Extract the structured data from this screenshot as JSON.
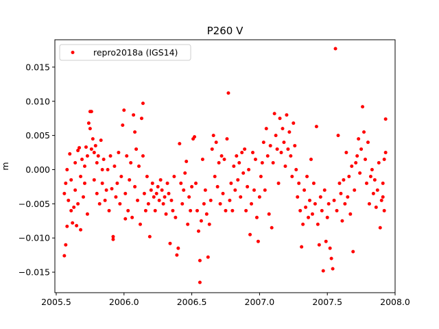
{
  "chart_data": {
    "type": "scatter",
    "title": "P260 V",
    "xlabel": "",
    "ylabel": "m",
    "xlim": [
      2005.49,
      2008.0
    ],
    "ylim": [
      -0.018,
      0.019
    ],
    "x_ticks": [
      {
        "value": 2005.5,
        "label": "2005.5"
      },
      {
        "value": 2006.0,
        "label": "2006.0"
      },
      {
        "value": 2006.5,
        "label": "2006.5"
      },
      {
        "value": 2007.0,
        "label": "2007.0"
      },
      {
        "value": 2007.5,
        "label": "2007.5"
      },
      {
        "value": 2008.0,
        "label": "2008.0"
      }
    ],
    "y_ticks": [
      {
        "value": 0.015,
        "label": "0.015"
      },
      {
        "value": 0.01,
        "label": "0.010"
      },
      {
        "value": 0.005,
        "label": "0.005"
      },
      {
        "value": 0.0,
        "label": "0.000"
      },
      {
        "value": -0.005,
        "label": "−0.005"
      },
      {
        "value": -0.01,
        "label": "−0.010"
      },
      {
        "value": -0.015,
        "label": "−0.015"
      }
    ],
    "grid": false,
    "legend": {
      "placement": "top-left"
    },
    "series": [
      {
        "name": "repro2018a (IGS14)",
        "color": "#ff0000",
        "points": [
          [
            2005.56,
            -0.0126
          ],
          [
            2005.57,
            -0.011
          ],
          [
            2005.58,
            -0.0083
          ],
          [
            2005.56,
            -0.0035
          ],
          [
            2005.57,
            -0.002
          ],
          [
            2005.58,
            0.0
          ],
          [
            2005.59,
            -0.0045
          ],
          [
            2005.6,
            0.0023
          ],
          [
            2005.61,
            -0.0015
          ],
          [
            2005.61,
            -0.006
          ],
          [
            2005.62,
            -0.0078
          ],
          [
            2005.63,
            -0.0055
          ],
          [
            2005.64,
            -0.003
          ],
          [
            2005.64,
            0.001
          ],
          [
            2005.65,
            -0.0082
          ],
          [
            2005.66,
            0.0028
          ],
          [
            2005.66,
            -0.005
          ],
          [
            2005.67,
            0.0032
          ],
          [
            2005.68,
            -0.0088
          ],
          [
            2005.68,
            -0.001
          ],
          [
            2005.69,
            0.0015
          ],
          [
            2005.7,
            -0.004
          ],
          [
            2005.71,
            -0.002
          ],
          [
            2005.71,
            0.0005
          ],
          [
            2005.72,
            0.0033
          ],
          [
            2005.73,
            -0.0065
          ],
          [
            2005.73,
            0.002
          ],
          [
            2005.74,
            0.0068
          ],
          [
            2005.75,
            0.0085
          ],
          [
            2005.75,
            0.006
          ],
          [
            2005.76,
            0.0085
          ],
          [
            2005.76,
            0.003
          ],
          [
            2005.77,
            0.0045
          ],
          [
            2005.78,
            0.0025
          ],
          [
            2005.78,
            -0.0015
          ],
          [
            2005.79,
            0.0035
          ],
          [
            2005.8,
            0.001
          ],
          [
            2005.8,
            -0.0035
          ],
          [
            2005.81,
            0.002
          ],
          [
            2005.82,
            -0.005
          ],
          [
            2005.83,
            0.0043
          ],
          [
            2005.84,
            0.0
          ],
          [
            2005.84,
            -0.002
          ],
          [
            2005.85,
            0.0015
          ],
          [
            2005.86,
            -0.0045
          ],
          [
            2005.87,
            -0.003
          ],
          [
            2005.88,
            0.0
          ],
          [
            2005.89,
            -0.006
          ],
          [
            2005.9,
            0.002
          ],
          [
            2005.91,
            -0.0028
          ],
          [
            2005.92,
            -0.0102
          ],
          [
            2005.92,
            -0.0098
          ],
          [
            2005.93,
            0.0005
          ],
          [
            2005.94,
            -0.004
          ],
          [
            2005.95,
            -0.002
          ],
          [
            2005.96,
            0.0025
          ],
          [
            2005.97,
            -0.005
          ],
          [
            2005.98,
            -0.001
          ],
          [
            2005.99,
            0.0065
          ],
          [
            2006.0,
            0.0087
          ],
          [
            2006.01,
            -0.0035
          ],
          [
            2006.01,
            -0.0072
          ],
          [
            2006.02,
            0.002
          ],
          [
            2006.03,
            -0.006
          ],
          [
            2006.04,
            -0.0015
          ],
          [
            2006.05,
            0.001
          ],
          [
            2006.06,
            -0.007
          ],
          [
            2006.07,
            0.008
          ],
          [
            2006.08,
            0.0055
          ],
          [
            2006.08,
            -0.0025
          ],
          [
            2006.09,
            0.003
          ],
          [
            2006.1,
            -0.0045
          ],
          [
            2006.11,
            0.0005
          ],
          [
            2006.12,
            -0.008
          ],
          [
            2006.13,
            0.0075
          ],
          [
            2006.14,
            0.0097
          ],
          [
            2006.14,
            0.002
          ],
          [
            2006.15,
            -0.0035
          ],
          [
            2006.16,
            -0.006
          ],
          [
            2006.17,
            -0.001
          ],
          [
            2006.18,
            -0.005
          ],
          [
            2006.19,
            -0.0098
          ],
          [
            2006.2,
            -0.003
          ],
          [
            2006.21,
            -0.002
          ],
          [
            2006.22,
            -0.004
          ],
          [
            2006.23,
            -0.006
          ],
          [
            2006.24,
            -0.0035
          ],
          [
            2006.25,
            -0.0025
          ],
          [
            2006.26,
            -0.0045
          ],
          [
            2006.27,
            -0.0015
          ],
          [
            2006.28,
            -0.003
          ],
          [
            2006.29,
            -0.005
          ],
          [
            2006.3,
            -0.004
          ],
          [
            2006.31,
            -0.0065
          ],
          [
            2006.32,
            -0.002
          ],
          [
            2006.33,
            -0.0035
          ],
          [
            2006.34,
            -0.0108
          ],
          [
            2006.35,
            -0.0045
          ],
          [
            2006.36,
            -0.006
          ],
          [
            2006.37,
            -0.001
          ],
          [
            2006.38,
            -0.007
          ],
          [
            2006.39,
            -0.0125
          ],
          [
            2006.4,
            -0.0115
          ],
          [
            2006.41,
            0.0038
          ],
          [
            2006.42,
            -0.002
          ],
          [
            2006.43,
            -0.005
          ],
          [
            2006.44,
            -0.003
          ],
          [
            2006.45,
            -0.0005
          ],
          [
            2006.46,
            0.0012
          ],
          [
            2006.47,
            -0.008
          ],
          [
            2006.48,
            -0.004
          ],
          [
            2006.49,
            -0.006
          ],
          [
            2006.5,
            -0.0025
          ],
          [
            2006.51,
            0.0045
          ],
          [
            2006.52,
            0.0048
          ],
          [
            2006.53,
            -0.002
          ],
          [
            2006.54,
            -0.006
          ],
          [
            2006.55,
            -0.009
          ],
          [
            2006.56,
            -0.0165
          ],
          [
            2006.56,
            -0.0133
          ],
          [
            2006.57,
            -0.0075
          ],
          [
            2006.58,
            0.0015
          ],
          [
            2006.59,
            -0.005
          ],
          [
            2006.6,
            -0.003
          ],
          [
            2006.61,
            -0.0065
          ],
          [
            2006.62,
            -0.0128
          ],
          [
            2006.63,
            -0.008
          ],
          [
            2006.64,
            -0.0045
          ],
          [
            2006.65,
            0.003
          ],
          [
            2006.66,
            0.005
          ],
          [
            2006.67,
            -0.001
          ],
          [
            2006.68,
            0.004
          ],
          [
            2006.69,
            -0.0025
          ],
          [
            2006.7,
            0.001
          ],
          [
            2006.71,
            -0.005
          ],
          [
            2006.72,
            0.002
          ],
          [
            2006.73,
            -0.0035
          ],
          [
            2006.74,
            0.0015
          ],
          [
            2006.75,
            -0.006
          ],
          [
            2006.76,
            0.0045
          ],
          [
            2006.77,
            0.0112
          ],
          [
            2006.78,
            -0.0045
          ],
          [
            2006.79,
            -0.002
          ],
          [
            2006.8,
            -0.006
          ],
          [
            2006.81,
            0.0005
          ],
          [
            2006.82,
            -0.003
          ],
          [
            2006.83,
            0.002
          ],
          [
            2006.84,
            -0.0015
          ],
          [
            2006.85,
            0.001
          ],
          [
            2006.86,
            -0.004
          ],
          [
            2006.87,
            0.0025
          ],
          [
            2006.88,
            -0.0005
          ],
          [
            2006.89,
            0.003
          ],
          [
            2006.9,
            -0.006
          ],
          [
            2006.91,
            -0.0025
          ],
          [
            2006.92,
            0.0
          ],
          [
            2006.93,
            -0.0095
          ],
          [
            2006.94,
            -0.005
          ],
          [
            2006.95,
            0.0025
          ],
          [
            2006.96,
            -0.003
          ],
          [
            2006.97,
            0.0015
          ],
          [
            2006.98,
            -0.007
          ],
          [
            2006.99,
            -0.0105
          ],
          [
            2007.0,
            -0.004
          ],
          [
            2007.01,
            -0.001
          ],
          [
            2007.02,
            0.001
          ],
          [
            2007.03,
            0.004
          ],
          [
            2007.04,
            -0.003
          ],
          [
            2007.05,
            0.006
          ],
          [
            2007.06,
            0.002
          ],
          [
            2007.07,
            -0.0065
          ],
          [
            2007.08,
            0.0035
          ],
          [
            2007.09,
            -0.0085
          ],
          [
            2007.1,
            0.001
          ],
          [
            2007.11,
            0.0082
          ],
          [
            2007.12,
            0.005
          ],
          [
            2007.13,
            0.003
          ],
          [
            2007.14,
            -0.002
          ],
          [
            2007.15,
            0.0075
          ],
          [
            2007.16,
            0.0025
          ],
          [
            2007.17,
            0.006
          ],
          [
            2007.18,
            0.004
          ],
          [
            2007.19,
            0.0005
          ],
          [
            2007.2,
            0.008
          ],
          [
            2007.21,
            0.003
          ],
          [
            2007.22,
            0.0055
          ],
          [
            2007.23,
            0.002
          ],
          [
            2007.24,
            -0.001
          ],
          [
            2007.25,
            0.0068
          ],
          [
            2007.26,
            0.0035
          ],
          [
            2007.27,
            0.0
          ],
          [
            2007.28,
            -0.004
          ],
          [
            2007.29,
            -0.002
          ],
          [
            2007.3,
            -0.006
          ],
          [
            2007.31,
            -0.0113
          ],
          [
            2007.32,
            -0.008
          ],
          [
            2007.33,
            -0.003
          ],
          [
            2007.34,
            -0.0055
          ],
          [
            2007.35,
            -0.001
          ],
          [
            2007.36,
            -0.007
          ],
          [
            2007.37,
            -0.0045
          ],
          [
            2007.38,
            0.0015
          ],
          [
            2007.39,
            -0.0065
          ],
          [
            2007.4,
            -0.002
          ],
          [
            2007.41,
            -0.005
          ],
          [
            2007.42,
            0.0063
          ],
          [
            2007.43,
            -0.008
          ],
          [
            2007.44,
            -0.011
          ],
          [
            2007.45,
            -0.004
          ],
          [
            2007.46,
            -0.006
          ],
          [
            2007.47,
            -0.0148
          ],
          [
            2007.48,
            -0.003
          ],
          [
            2007.49,
            -0.0105
          ],
          [
            2007.5,
            -0.007
          ],
          [
            2007.51,
            -0.005
          ],
          [
            2007.52,
            -0.0115
          ],
          [
            2007.53,
            -0.013
          ],
          [
            2007.54,
            -0.0145
          ],
          [
            2007.55,
            -0.0045
          ],
          [
            2007.56,
            0.0177
          ],
          [
            2007.57,
            -0.006
          ],
          [
            2007.58,
            0.005
          ],
          [
            2007.59,
            -0.002
          ],
          [
            2007.6,
            -0.0035
          ],
          [
            2007.61,
            -0.0075
          ],
          [
            2007.62,
            -0.0015
          ],
          [
            2007.63,
            -0.005
          ],
          [
            2007.64,
            0.0025
          ],
          [
            2007.65,
            -0.004
          ],
          [
            2007.66,
            -0.001
          ],
          [
            2007.67,
            -0.0065
          ],
          [
            2007.68,
            0.0005
          ],
          [
            2007.69,
            -0.012
          ],
          [
            2007.7,
            -0.003
          ],
          [
            2007.71,
            0.001
          ],
          [
            2007.72,
            0.002
          ],
          [
            2007.73,
            0.0045
          ],
          [
            2007.74,
            -0.0005
          ],
          [
            2007.75,
            0.003
          ],
          [
            2007.76,
            0.0092
          ],
          [
            2007.77,
            0.0055
          ],
          [
            2007.78,
            0.0015
          ],
          [
            2007.79,
            -0.002
          ],
          [
            2007.8,
            0.004
          ],
          [
            2007.81,
            -0.005
          ],
          [
            2007.82,
            -0.001
          ],
          [
            2007.83,
            0.0
          ],
          [
            2007.84,
            -0.0035
          ],
          [
            2007.85,
            -0.0015
          ],
          [
            2007.86,
            -0.0055
          ],
          [
            2007.87,
            -0.003
          ],
          [
            2007.88,
            0.001
          ],
          [
            2007.89,
            -0.0085
          ],
          [
            2007.9,
            -0.0045
          ],
          [
            2007.91,
            -0.002
          ],
          [
            2007.92,
            0.0015
          ],
          [
            2007.93,
            0.0074
          ],
          [
            2007.93,
            0.0025
          ],
          [
            2007.92,
            -0.006
          ],
          [
            2007.91,
            -0.004
          ]
        ]
      }
    ]
  }
}
